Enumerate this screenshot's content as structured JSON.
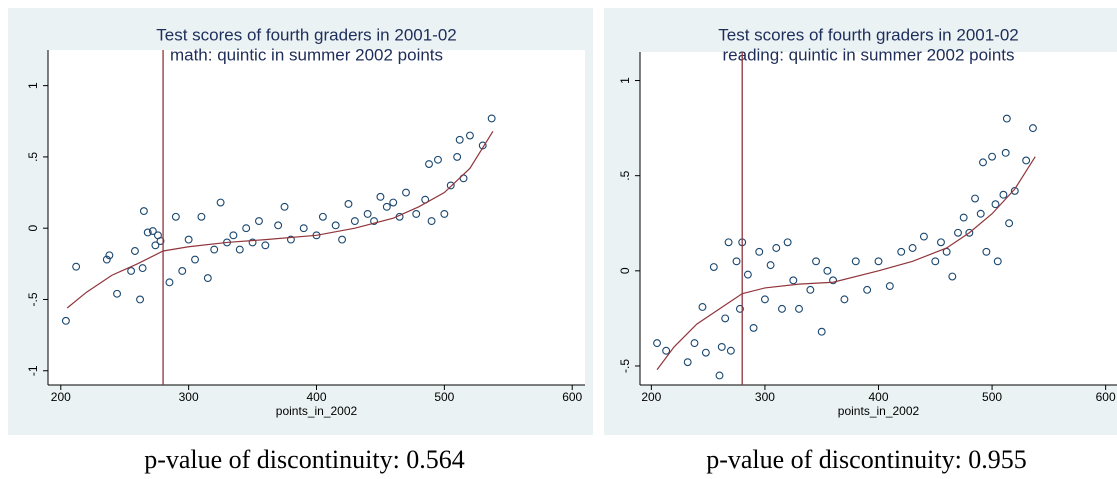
{
  "chart_data": [
    {
      "type": "scatter",
      "title": "Test scores of fourth graders in 2001-02",
      "subtitle": "math: quintic in summer 2002 points",
      "x_label": "points_in_2002",
      "caption": "p-value of discontinuity: 0.564",
      "color": "#1a476f",
      "fit_color": "#90353b",
      "cutoff_color": "#90353b",
      "x": [
        204,
        212,
        236,
        238,
        244,
        255,
        258,
        262,
        264,
        265,
        268,
        272,
        274,
        276,
        278,
        285,
        290,
        295,
        300,
        305,
        310,
        315,
        320,
        325,
        330,
        335,
        340,
        345,
        350,
        355,
        360,
        370,
        375,
        380,
        390,
        400,
        405,
        415,
        420,
        425,
        430,
        440,
        445,
        450,
        455,
        460,
        465,
        470,
        478,
        485,
        488,
        490,
        495,
        500,
        505,
        510,
        512,
        515,
        520,
        530,
        537
      ],
      "values": [
        -0.65,
        -0.27,
        -0.22,
        -0.19,
        -0.46,
        -0.3,
        -0.16,
        -0.5,
        -0.28,
        0.12,
        -0.03,
        -0.02,
        -0.12,
        -0.05,
        -0.09,
        -0.38,
        0.08,
        -0.3,
        -0.08,
        -0.22,
        0.08,
        -0.35,
        -0.15,
        0.18,
        -0.1,
        -0.05,
        -0.15,
        0.0,
        -0.1,
        0.05,
        -0.12,
        0.02,
        0.15,
        -0.08,
        0.0,
        -0.05,
        0.08,
        0.02,
        -0.08,
        0.17,
        0.05,
        0.1,
        0.05,
        0.22,
        0.15,
        0.18,
        0.08,
        0.25,
        0.1,
        0.2,
        0.45,
        0.05,
        0.48,
        0.1,
        0.3,
        0.5,
        0.62,
        0.35,
        0.65,
        0.58,
        0.77
      ],
      "fit": {
        "x": [
          205,
          220,
          240,
          260,
          280,
          300,
          330,
          360,
          400,
          430,
          460,
          480,
          500,
          520,
          538
        ],
        "values": [
          -0.56,
          -0.45,
          -0.33,
          -0.25,
          -0.16,
          -0.13,
          -0.1,
          -0.08,
          -0.05,
          0.0,
          0.07,
          0.15,
          0.25,
          0.42,
          0.68
        ]
      },
      "cutoff": 280,
      "xlim": [
        190,
        610
      ],
      "ylim": [
        -1.1,
        1.25
      ],
      "xticks": [
        200,
        300,
        400,
        500,
        600
      ],
      "yticks": [
        -1,
        {
          "value": -0.5,
          "label": "-.5"
        },
        0,
        {
          "value": 0.5,
          "label": ".5"
        },
        1
      ]
    },
    {
      "type": "scatter",
      "title": "Test scores of fourth graders in 2001-02",
      "subtitle": "reading: quintic in summer 2002 points",
      "x_label": "points_in_2002",
      "caption": "p-value of discontinuity: 0.955",
      "color": "#1a476f",
      "fit_color": "#90353b",
      "cutoff_color": "#90353b",
      "x": [
        205,
        213,
        232,
        238,
        245,
        248,
        255,
        260,
        262,
        265,
        268,
        270,
        275,
        278,
        280,
        285,
        290,
        295,
        300,
        305,
        310,
        315,
        320,
        325,
        330,
        340,
        345,
        350,
        355,
        360,
        370,
        380,
        390,
        400,
        410,
        420,
        430,
        440,
        450,
        455,
        460,
        465,
        470,
        475,
        480,
        485,
        490,
        492,
        495,
        500,
        503,
        505,
        510,
        512,
        513,
        515,
        520,
        530,
        536
      ],
      "values": [
        -0.38,
        -0.42,
        -0.48,
        -0.38,
        -0.19,
        -0.43,
        0.02,
        -0.55,
        -0.4,
        -0.25,
        0.15,
        -0.42,
        0.05,
        -0.2,
        0.15,
        -0.02,
        -0.3,
        0.1,
        -0.15,
        0.03,
        0.12,
        -0.2,
        0.15,
        -0.05,
        -0.2,
        -0.1,
        0.05,
        -0.32,
        0.0,
        -0.05,
        -0.15,
        0.05,
        -0.1,
        0.05,
        -0.08,
        0.1,
        0.12,
        0.18,
        0.05,
        0.15,
        0.1,
        -0.03,
        0.2,
        0.28,
        0.2,
        0.38,
        0.3,
        0.57,
        0.1,
        0.6,
        0.35,
        0.05,
        0.4,
        0.62,
        0.8,
        0.25,
        0.42,
        0.58,
        0.75
      ],
      "fit": {
        "x": [
          205,
          220,
          240,
          260,
          280,
          300,
          330,
          360,
          400,
          430,
          460,
          480,
          500,
          520,
          538
        ],
        "values": [
          -0.52,
          -0.4,
          -0.28,
          -0.2,
          -0.12,
          -0.09,
          -0.07,
          -0.06,
          0.0,
          0.05,
          0.12,
          0.2,
          0.3,
          0.43,
          0.6
        ]
      },
      "cutoff": 280,
      "xlim": [
        190,
        610
      ],
      "ylim": [
        -0.6,
        1.15
      ],
      "xticks": [
        200,
        300,
        400,
        500,
        600
      ],
      "yticks": [
        {
          "value": -0.5,
          "label": "-.5"
        },
        0,
        {
          "value": 0.5,
          "label": ".5"
        },
        1
      ]
    }
  ]
}
